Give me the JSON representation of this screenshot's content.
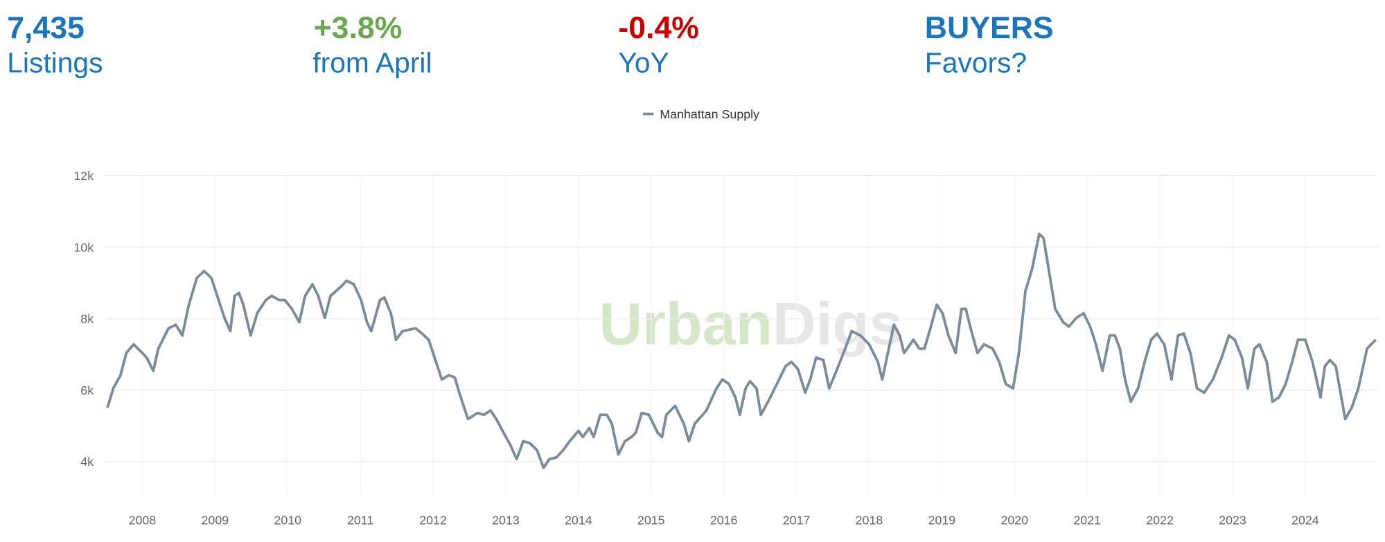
{
  "stats": [
    {
      "value": "7,435",
      "label": "Listings"
    },
    {
      "value": "+3.8%",
      "label": "from April"
    },
    {
      "value": "-0.4%",
      "label": "YoY"
    },
    {
      "value": "BUYERS",
      "label": "Favors?"
    }
  ],
  "chart_data": {
    "type": "line",
    "watermark": [
      "Urban",
      "Digs"
    ],
    "xlim": [
      2007.5,
      2025.0
    ],
    "xticks": [
      2008,
      2009,
      2010,
      2011,
      2012,
      2013,
      2014,
      2015,
      2016,
      2017,
      2018,
      2019,
      2020,
      2021,
      2022,
      2023,
      2024
    ],
    "ylim": [
      3000,
      12000
    ],
    "yticks": [
      {
        "value": 4000,
        "label": "4k"
      },
      {
        "value": 6000,
        "label": "6k"
      },
      {
        "value": 8000,
        "label": "8k"
      },
      {
        "value": 10000,
        "label": "10k"
      },
      {
        "value": 12000,
        "label": "12k"
      }
    ],
    "grid": true,
    "legend": "top",
    "series": [
      {
        "name": "Manhattan Supply",
        "color": "#7a8b99",
        "x": [
          2007.52,
          2007.6,
          2007.7,
          2007.78,
          2007.88,
          2008.0,
          2008.06,
          2008.15,
          2008.22,
          2008.36,
          2008.46,
          2008.55,
          2008.64,
          2008.75,
          2008.85,
          2008.95,
          2009.03,
          2009.13,
          2009.21,
          2009.27,
          2009.33,
          2009.39,
          2009.49,
          2009.58,
          2009.7,
          2009.78,
          2009.88,
          2009.96,
          2010.06,
          2010.16,
          2010.24,
          2010.34,
          2010.42,
          2010.51,
          2010.59,
          2010.73,
          2010.81,
          2010.91,
          2011.01,
          2011.09,
          2011.15,
          2011.27,
          2011.33,
          2011.42,
          2011.49,
          2011.58,
          2011.76,
          2011.85,
          2011.94,
          2012.04,
          2012.12,
          2012.22,
          2012.3,
          2012.36,
          2012.48,
          2012.61,
          2012.7,
          2012.79,
          2012.87,
          2012.97,
          2013.07,
          2013.15,
          2013.24,
          2013.33,
          2013.43,
          2013.52,
          2013.6,
          2013.7,
          2013.79,
          2013.88,
          2014.0,
          2014.06,
          2014.15,
          2014.21,
          2014.3,
          2014.39,
          2014.46,
          2014.55,
          2014.64,
          2014.73,
          2014.79,
          2014.87,
          2014.97,
          2015.09,
          2015.15,
          2015.21,
          2015.33,
          2015.45,
          2015.52,
          2015.6,
          2015.76,
          2015.9,
          2015.98,
          2016.07,
          2016.16,
          2016.22,
          2016.3,
          2016.36,
          2016.45,
          2016.51,
          2016.61,
          2016.73,
          2016.85,
          2016.93,
          2017.02,
          2017.12,
          2017.19,
          2017.27,
          2017.37,
          2017.45,
          2017.55,
          2017.67,
          2017.76,
          2017.88,
          2018.0,
          2018.12,
          2018.18,
          2018.27,
          2018.34,
          2018.42,
          2018.48,
          2018.61,
          2018.69,
          2018.76,
          2018.85,
          2018.93,
          2019.01,
          2019.09,
          2019.19,
          2019.27,
          2019.33,
          2019.39,
          2019.49,
          2019.58,
          2019.7,
          2019.79,
          2019.88,
          2019.98,
          2020.06,
          2020.15,
          2020.24,
          2020.34,
          2020.4,
          2020.48,
          2020.56,
          2020.67,
          2020.75,
          2020.85,
          2020.95,
          2021.04,
          2021.12,
          2021.21,
          2021.31,
          2021.38,
          2021.45,
          2021.52,
          2021.6,
          2021.7,
          2021.79,
          2021.88,
          2021.96,
          2022.06,
          2022.16,
          2022.25,
          2022.33,
          2022.42,
          2022.51,
          2022.61,
          2022.73,
          2022.85,
          2022.95,
          2023.03,
          2023.13,
          2023.21,
          2023.3,
          2023.37,
          2023.47,
          2023.55,
          2023.64,
          2023.73,
          2023.82,
          2023.9,
          2024.0,
          2024.1,
          2024.21,
          2024.27,
          2024.34,
          2024.42,
          2024.55,
          2024.64,
          2024.73,
          2024.85,
          2024.97
        ],
        "values": [
          5510,
          6050,
          6420,
          7040,
          7280,
          7040,
          6910,
          6540,
          7160,
          7730,
          7830,
          7530,
          8390,
          9140,
          9330,
          9140,
          8640,
          8020,
          7650,
          8640,
          8720,
          8390,
          7530,
          8150,
          8520,
          8640,
          8520,
          8520,
          8270,
          7900,
          8640,
          8960,
          8640,
          8020,
          8640,
          8890,
          9060,
          8960,
          8520,
          7900,
          7650,
          8520,
          8590,
          8150,
          7410,
          7650,
          7730,
          7580,
          7410,
          6790,
          6300,
          6420,
          6350,
          5930,
          5190,
          5360,
          5310,
          5430,
          5190,
          4810,
          4440,
          4070,
          4570,
          4520,
          4320,
          3830,
          4070,
          4120,
          4320,
          4570,
          4860,
          4690,
          4940,
          4690,
          5310,
          5310,
          5060,
          4200,
          4570,
          4690,
          4810,
          5360,
          5310,
          4810,
          4690,
          5310,
          5560,
          5060,
          4570,
          5060,
          5430,
          6050,
          6300,
          6170,
          5800,
          5310,
          6050,
          6250,
          6050,
          5310,
          5680,
          6170,
          6670,
          6790,
          6590,
          5930,
          6300,
          6910,
          6840,
          6050,
          6540,
          7160,
          7650,
          7530,
          7280,
          6790,
          6300,
          7160,
          7830,
          7530,
          7040,
          7410,
          7160,
          7160,
          7780,
          8390,
          8150,
          7530,
          7040,
          8270,
          8270,
          7780,
          7040,
          7280,
          7160,
          6790,
          6170,
          6050,
          7040,
          8770,
          9380,
          10370,
          10250,
          9260,
          8270,
          7900,
          7780,
          8020,
          8150,
          7780,
          7280,
          6540,
          7530,
          7530,
          7160,
          6300,
          5680,
          6050,
          6790,
          7410,
          7580,
          7280,
          6300,
          7530,
          7580,
          7040,
          6050,
          5930,
          6300,
          6910,
          7530,
          7410,
          6910,
          6050,
          7160,
          7280,
          6790,
          5680,
          5800,
          6170,
          6790,
          7410,
          7410,
          6790,
          5800,
          6670,
          6840,
          6670,
          5190,
          5510,
          6050,
          7160,
          7410
        ]
      }
    ]
  }
}
